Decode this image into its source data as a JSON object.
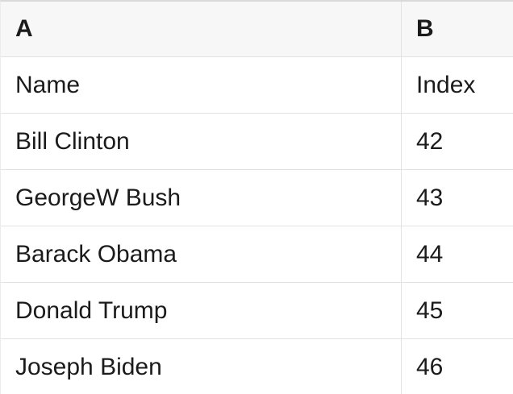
{
  "spreadsheet": {
    "column_headers": {
      "a": "A",
      "b": "B"
    },
    "rows": [
      {
        "a": "Name",
        "b": "Index"
      },
      {
        "a": "Bill Clinton",
        "b": "42"
      },
      {
        "a": "GeorgeW Bush",
        "b": "43"
      },
      {
        "a": "Barack Obama",
        "b": "44"
      },
      {
        "a": "Donald Trump",
        "b": "45"
      },
      {
        "a": "Joseph Biden",
        "b": "46"
      }
    ],
    "colors": {
      "header_background": "#f7f7f7",
      "grid_border": "#e2e2e2",
      "top_border": "#d9d9d9",
      "text": "#1b1b1b"
    }
  }
}
